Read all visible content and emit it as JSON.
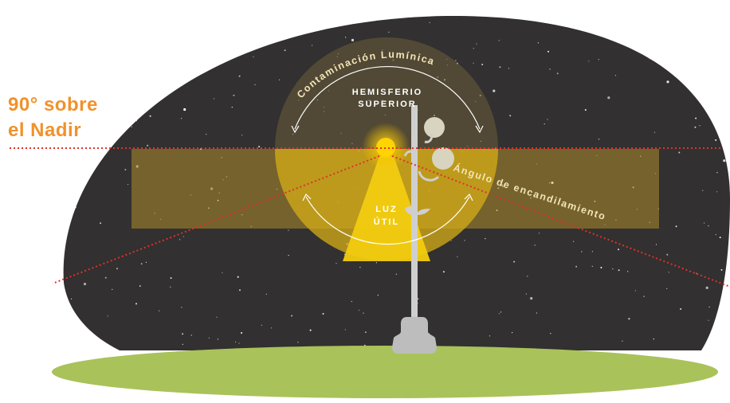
{
  "side_label": {
    "line1": "90° sobre",
    "line2": "el Nadir"
  },
  "labels": {
    "contaminacion": "Contaminación Lumínica",
    "hemisferio_line1": "HEMISFERIO",
    "hemisferio_line2": "SUPERIOR",
    "luz_line1": "LUZ",
    "luz_line2": "ÚTIL",
    "angulo": "Ángulo de encandilamiento"
  },
  "colors": {
    "sky": "#323030",
    "ground": "#a9c25a",
    "accent_orange": "#f0922b",
    "light_yellow": "#f5d000",
    "pole": "#cfcfcf",
    "guide_line": "#e0312b"
  }
}
